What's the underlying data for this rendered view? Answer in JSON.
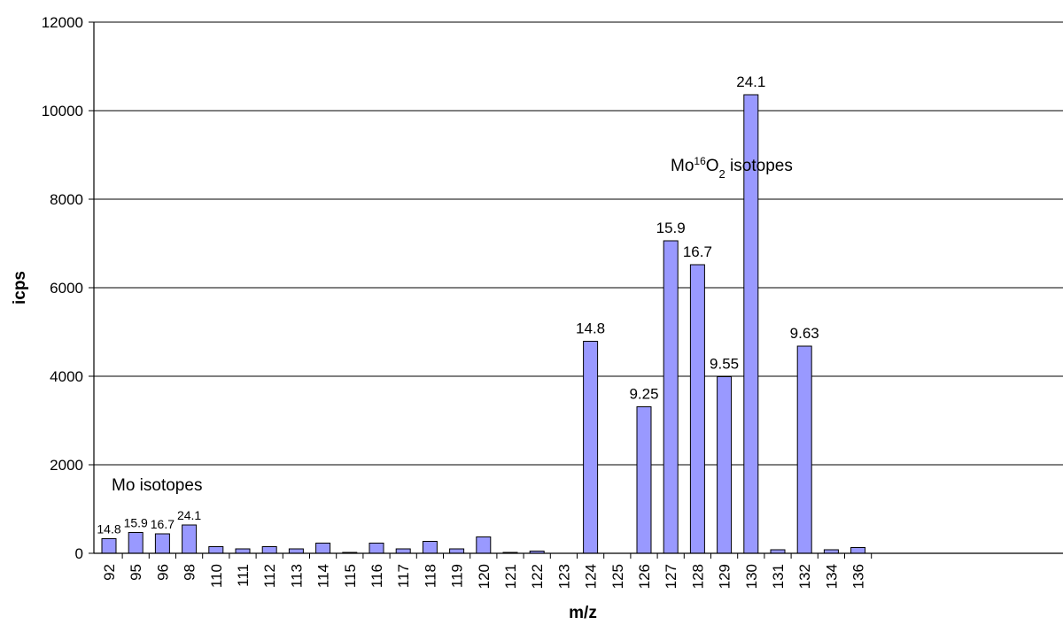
{
  "chart_data": {
    "type": "bar",
    "title": "",
    "xlabel": "m/z",
    "ylabel": "icps",
    "ylim": [
      0,
      12000
    ],
    "yticks": [
      0,
      2000,
      4000,
      6000,
      8000,
      10000,
      12000
    ],
    "grid": true,
    "bar_color": "#9999ff",
    "categories": [
      "92",
      "95",
      "96",
      "98",
      "110",
      "111",
      "112",
      "113",
      "114",
      "115",
      "116",
      "117",
      "118",
      "119",
      "120",
      "121",
      "122",
      "123",
      "124",
      "125",
      "126",
      "127",
      "128",
      "129",
      "130",
      "131",
      "132",
      "134",
      "136"
    ],
    "values": [
      330,
      470,
      440,
      640,
      150,
      100,
      150,
      100,
      230,
      20,
      230,
      100,
      270,
      100,
      370,
      20,
      50,
      0,
      4790,
      0,
      3310,
      7060,
      6520,
      3990,
      10360,
      80,
      4680,
      80,
      130
    ],
    "data_labels": [
      "14.8",
      "15.9",
      "16.7",
      "24.1",
      "",
      "",
      "",
      "",
      "",
      "",
      "",
      "",
      "",
      "",
      "",
      "",
      "",
      "",
      "14.8",
      "",
      "9.25",
      "15.9",
      "16.7",
      "9.55",
      "24.1",
      "",
      "9.63",
      "",
      ""
    ],
    "annotations": [
      {
        "parts": [
          {
            "t": "Mo isotopes"
          }
        ]
      },
      {
        "parts": [
          {
            "t": "Mo"
          },
          {
            "t": "16",
            "sup": true
          },
          {
            "t": "O"
          },
          {
            "t": "2",
            "sub": true
          },
          {
            "t": " isotopes"
          }
        ]
      }
    ]
  }
}
